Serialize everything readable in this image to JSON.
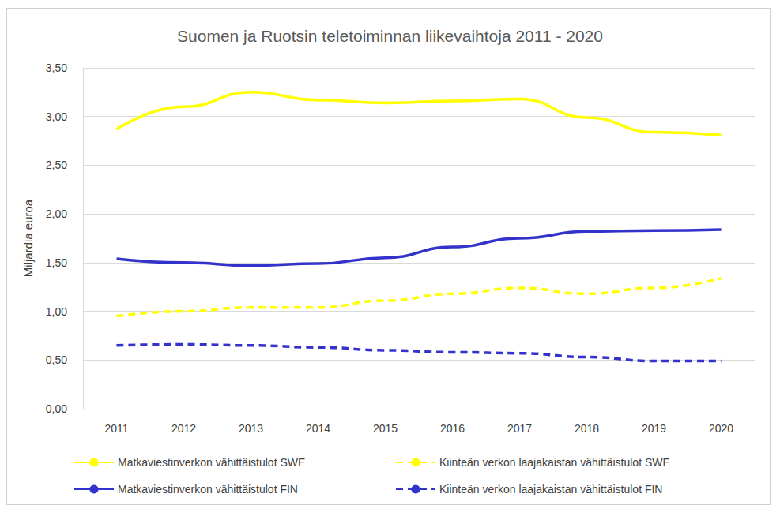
{
  "chart_data": {
    "type": "line",
    "title": "Suomen ja Ruotsin teletoiminnan liikevaihtoja 2011 - 2020",
    "y_label": "Miljardia euroa",
    "categories": [
      "2011",
      "2012",
      "2013",
      "2014",
      "2015",
      "2016",
      "2017",
      "2018",
      "2019",
      "2020"
    ],
    "series": [
      {
        "name": "Matkaviestinverkon vähittäistulot SWE",
        "color": "#ffff00",
        "line_style": "solid",
        "values": [
          2.87,
          3.1,
          3.25,
          3.17,
          3.14,
          3.16,
          3.18,
          2.99,
          2.84,
          2.81
        ]
      },
      {
        "name": "Kiinteän verkon laajakaistan vähittäistulot SWE",
        "color": "#ffff00",
        "line_style": "dashed",
        "values": [
          0.95,
          1.0,
          1.04,
          1.04,
          1.11,
          1.18,
          1.24,
          1.18,
          1.24,
          1.34
        ]
      },
      {
        "name": "Matkaviestinverkon vähittäistulot FIN",
        "color": "#3333cc",
        "line_style": "solid",
        "values": [
          1.54,
          1.5,
          1.47,
          1.49,
          1.55,
          1.66,
          1.75,
          1.82,
          1.83,
          1.84
        ]
      },
      {
        "name": "Kiinteän verkon laajakaistan vähittäistulot FIN",
        "color": "#3333cc",
        "line_style": "dashed",
        "values": [
          0.65,
          0.66,
          0.65,
          0.63,
          0.6,
          0.58,
          0.57,
          0.53,
          0.49,
          0.49
        ]
      }
    ],
    "ylim": [
      0,
      3.5
    ],
    "yticks": [
      {
        "value": 0,
        "label": "0,00"
      },
      {
        "value": 0.5,
        "label": "0,50"
      },
      {
        "value": 1,
        "label": "1,00"
      },
      {
        "value": 1.5,
        "label": "1,50"
      },
      {
        "value": 2,
        "label": "2,00"
      },
      {
        "value": 2.5,
        "label": "2,50"
      },
      {
        "value": 3,
        "label": "3,00"
      },
      {
        "value": 3.5,
        "label": "3,50"
      }
    ],
    "grid": true,
    "legend": "bottom",
    "marker": "none"
  }
}
